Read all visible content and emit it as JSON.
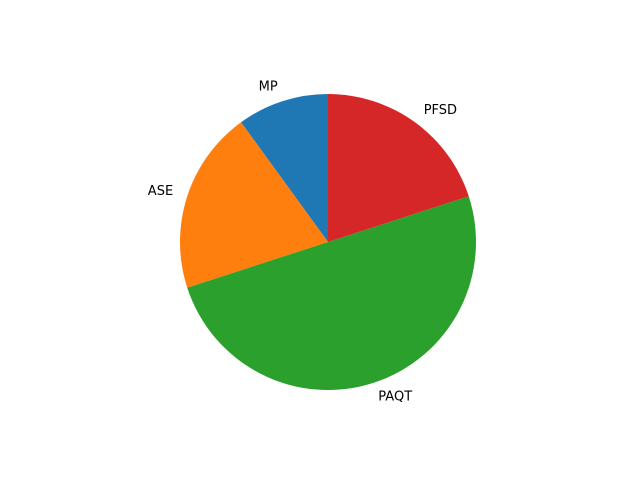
{
  "chart_data": {
    "type": "pie",
    "labels": [
      "MP",
      "ASE",
      "PAQT",
      "PFSD"
    ],
    "values": [
      10,
      20,
      50,
      20
    ],
    "colors": [
      "#1f77b4",
      "#ff7f0e",
      "#2ca02c",
      "#d62728"
    ],
    "start_angle": 90,
    "direction": "counterclockwise",
    "title": "",
    "legend": false
  }
}
